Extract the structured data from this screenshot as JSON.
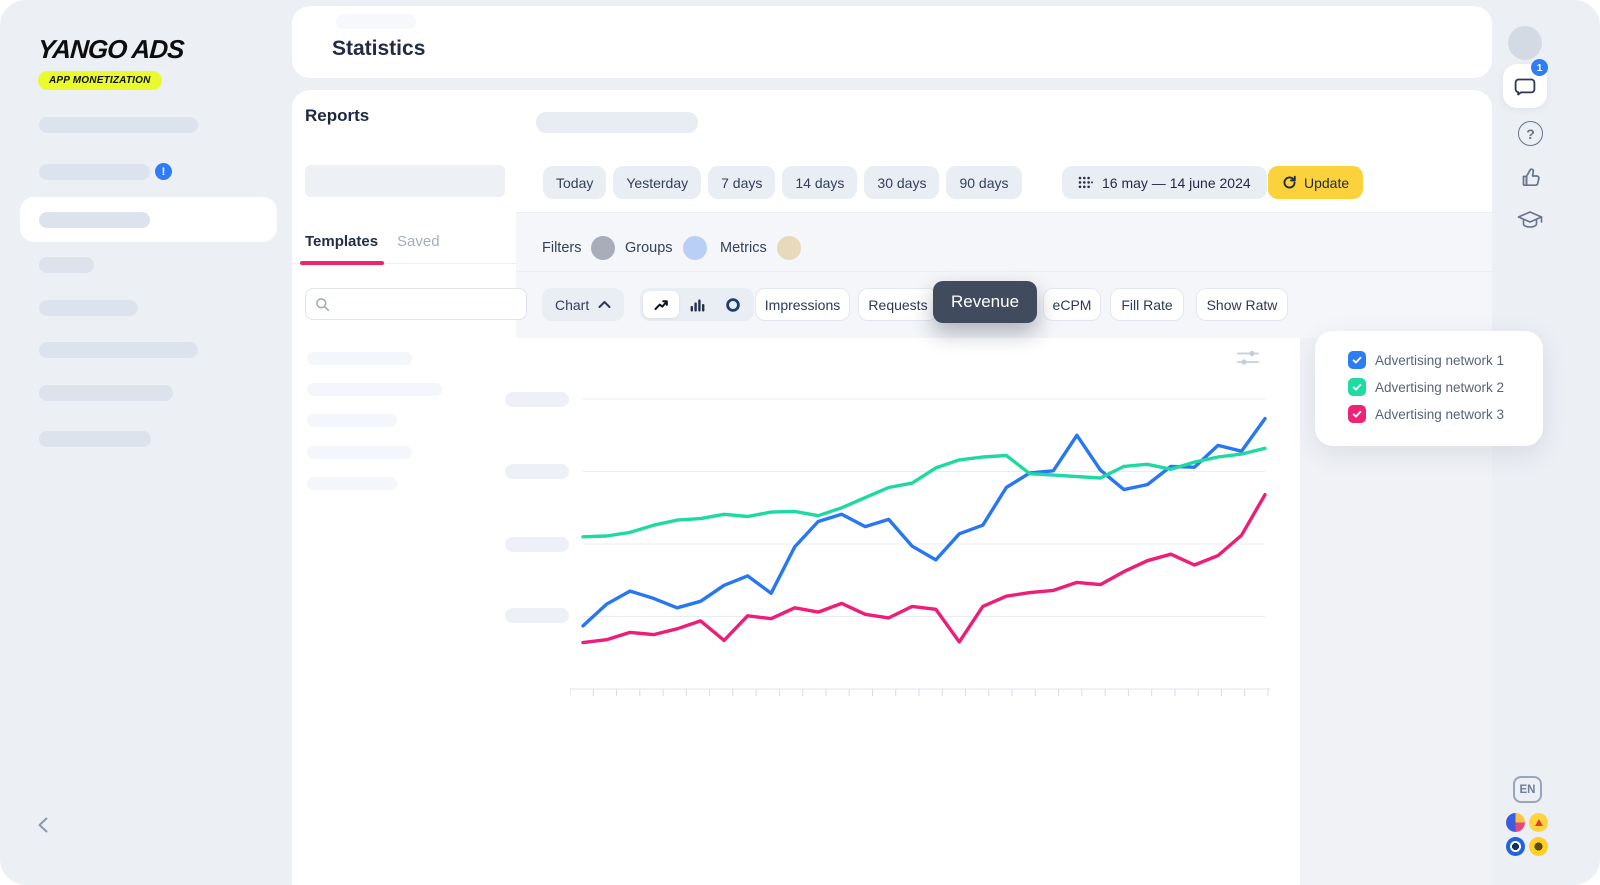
{
  "sidebar": {
    "logo_line1": "YANGO ADS",
    "logo_badge": "APP MONETIZATION",
    "notification_badge": "!"
  },
  "header": {
    "title": "Statistics"
  },
  "reports": {
    "title": "Reports",
    "tabs": [
      {
        "label": "Templates",
        "active": true
      },
      {
        "label": "Saved",
        "active": false
      }
    ],
    "search_placeholder": "",
    "date_presets": [
      "Today",
      "Yesterday",
      "7 days",
      "14 days",
      "30 days",
      "90 days"
    ],
    "date_range": "16 may — 14 june 2024",
    "update_label": "Update",
    "pills": [
      {
        "label": "Filters",
        "color": "#a8aeb9"
      },
      {
        "label": "Groups",
        "color": "#b9cff5"
      },
      {
        "label": "Metrics",
        "color": "#e8d9bd"
      }
    ],
    "chart_dropdown_label": "Chart",
    "metric_buttons": [
      "Impressions",
      "Requests",
      "eCPM",
      "Fill Rate",
      "Show Ratw"
    ],
    "active_metric": "Revenue",
    "accent_yellow": "#fcd23c",
    "active_metric_bg": "#414b5e",
    "tab_underline_color": "#f1246a"
  },
  "legend": {
    "items": [
      {
        "label": "Advertising network 1",
        "color": "#2b7cf6",
        "checked": true
      },
      {
        "label": "Advertising network 2",
        "color": "#1edba2",
        "checked": true
      },
      {
        "label": "Advertising network 3",
        "color": "#ef2276",
        "checked": true
      }
    ]
  },
  "right_rail": {
    "chat_badge": "1",
    "language": "EN"
  },
  "chart_data": {
    "type": "line",
    "title": "",
    "x_axis": {
      "start": "16 may 2024",
      "end": "14 june 2024",
      "points": 30,
      "tick_labels_visible": false
    },
    "y_axis": {
      "labels_visible": false,
      "note": "y-axis labels shown as skeleton placeholder pills",
      "range": [
        0,
        4.5
      ],
      "gridlines": [
        1,
        2,
        3,
        4
      ]
    },
    "grid": true,
    "legend_position": "right",
    "y_unit": "relative units (no numeric labels rendered in UI)",
    "series": [
      {
        "name": "Advertising network 1",
        "color": "#2777f2",
        "values": [
          0.87,
          1.17,
          1.35,
          1.25,
          1.12,
          1.21,
          1.43,
          1.56,
          1.32,
          1.96,
          2.31,
          2.41,
          2.24,
          2.34,
          1.97,
          1.78,
          2.14,
          2.26,
          2.78,
          2.98,
          3.01,
          3.5,
          3.02,
          2.75,
          2.82,
          3.07,
          3.06,
          3.36,
          3.28,
          3.73
        ]
      },
      {
        "name": "Advertising network 2",
        "color": "#1fd9a3",
        "values": [
          2.1,
          2.11,
          2.16,
          2.26,
          2.33,
          2.35,
          2.41,
          2.38,
          2.44,
          2.45,
          2.39,
          2.5,
          2.64,
          2.78,
          2.84,
          3.05,
          3.16,
          3.2,
          3.22,
          2.97,
          2.95,
          2.93,
          2.91,
          3.07,
          3.1,
          3.03,
          3.13,
          3.2,
          3.24,
          3.32
        ]
      },
      {
        "name": "Advertising network 3",
        "color": "#ee1d77",
        "values": [
          0.64,
          0.68,
          0.78,
          0.75,
          0.83,
          0.94,
          0.67,
          1.01,
          0.97,
          1.12,
          1.06,
          1.18,
          1.03,
          0.98,
          1.14,
          1.1,
          0.65,
          1.14,
          1.28,
          1.33,
          1.36,
          1.47,
          1.44,
          1.62,
          1.77,
          1.86,
          1.71,
          1.84,
          2.12,
          2.68
        ]
      }
    ]
  }
}
